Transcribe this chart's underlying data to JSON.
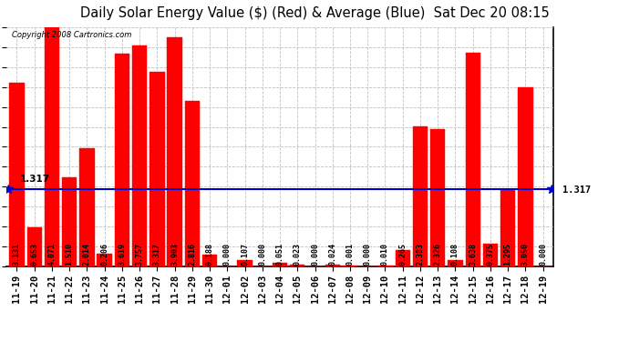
{
  "title": "Daily Solar Energy Value ($) (Red) & Average (Blue)  Sat Dec 20 08:15",
  "copyright": "Copyright 2008 Cartronics.com",
  "average": 1.317,
  "categories": [
    "11-19",
    "11-20",
    "11-21",
    "11-22",
    "11-23",
    "11-24",
    "11-25",
    "11-26",
    "11-27",
    "11-28",
    "11-29",
    "11-30",
    "12-01",
    "12-02",
    "12-03",
    "12-04",
    "12-05",
    "12-06",
    "12-07",
    "12-08",
    "12-09",
    "12-10",
    "12-11",
    "12-12",
    "12-13",
    "12-14",
    "12-15",
    "12-16",
    "12-17",
    "12-18",
    "12-19"
  ],
  "values": [
    3.131,
    0.653,
    4.071,
    1.51,
    2.014,
    0.206,
    3.619,
    3.757,
    3.317,
    3.903,
    2.816,
    0.188,
    0.0,
    0.107,
    0.0,
    0.051,
    0.023,
    0.0,
    0.024,
    0.001,
    0.0,
    0.01,
    0.265,
    2.383,
    2.326,
    0.108,
    3.638,
    0.375,
    1.295,
    3.05,
    0.0
  ],
  "bar_color": "#ff0000",
  "bar_edge_color": "#cc0000",
  "avg_line_color": "#0000cc",
  "bg_color": "#ffffff",
  "plot_bg_color": "#ffffff",
  "grid_color": "#c0c0c0",
  "title_color": "#000000",
  "ylim": [
    0.0,
    4.07
  ],
  "yticks": [
    0.0,
    0.34,
    0.68,
    1.02,
    1.36,
    1.7,
    2.04,
    2.37,
    2.71,
    3.05,
    3.39,
    3.73,
    4.07
  ],
  "avg_label": "1.317",
  "title_fontsize": 10.5,
  "val_fontsize": 6.0,
  "tick_fontsize": 7.5,
  "copy_fontsize": 6.0
}
